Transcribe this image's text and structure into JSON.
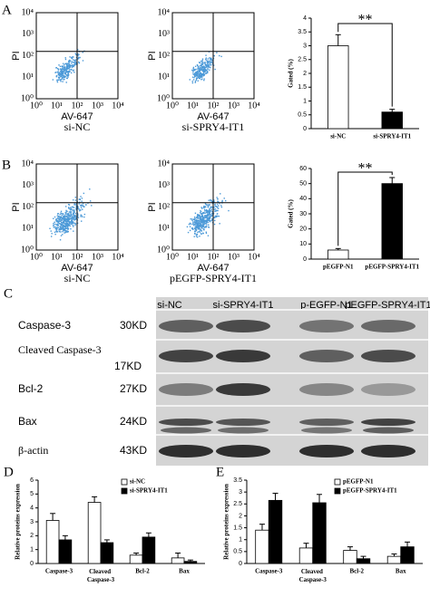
{
  "panel_labels": [
    "A",
    "B",
    "C",
    "D",
    "E"
  ],
  "flow": {
    "y_label": "PI",
    "x_label": "AV-647",
    "ticks": [
      "10⁰",
      "10¹",
      "10²",
      "10³",
      "10⁴"
    ],
    "plots": [
      {
        "label": "si-NC"
      },
      {
        "label": "si-SPRY4-IT1"
      },
      {
        "label": "si-NC"
      },
      {
        "label": "pEGFP-SPRY4-IT1"
      }
    ]
  },
  "blot": {
    "columns": [
      "si-NC",
      "si-SPRY4-IT1",
      "p-EGFP-N1",
      "pEGFP-SPRY4-IT1"
    ],
    "rows": [
      {
        "protein": "Caspase-3",
        "size": "30KD"
      },
      {
        "protein": "Cleaved Caspase-3",
        "size": "17KD"
      },
      {
        "protein": "Bcl-2",
        "size": "27KD"
      },
      {
        "protein": "Bax",
        "size": "24KD"
      },
      {
        "protein": "β-actin",
        "size": "43KD"
      }
    ]
  },
  "chart_data": [
    {
      "type": "bar",
      "ylabel": "Gated (%)",
      "categories": [
        "si-NC",
        "si-SPRY4-IT1"
      ],
      "values": [
        3.0,
        0.6
      ],
      "errors": [
        0.4,
        0.1
      ],
      "colors": [
        "#ffffff",
        "#000000"
      ],
      "ylim": [
        0,
        4
      ],
      "yticks": [
        0,
        0.5,
        1,
        1.5,
        2,
        2.5,
        3,
        3.5,
        4
      ],
      "annotation": "**"
    },
    {
      "type": "bar",
      "ylabel": "Gated (%)",
      "categories": [
        "pEGFP-N1",
        "pEGFP-SPRY4-IT1"
      ],
      "values": [
        6,
        50
      ],
      "errors": [
        1,
        4
      ],
      "colors": [
        "#ffffff",
        "#000000"
      ],
      "ylim": [
        0,
        60
      ],
      "yticks": [
        0,
        10,
        20,
        30,
        40,
        50,
        60
      ],
      "annotation": "**"
    },
    {
      "type": "bar",
      "ylabel": "Relative proteins expression",
      "categories": [
        "Caspase-3",
        "Cleaved Caspase-3",
        "Bcl-2",
        "Bax"
      ],
      "series": [
        {
          "name": "si-NC",
          "color": "#ffffff",
          "values": [
            3.1,
            4.4,
            0.6,
            0.4
          ],
          "errors": [
            0.5,
            0.4,
            0.15,
            0.35
          ]
        },
        {
          "name": "si-SPRY4-IT1",
          "color": "#000000",
          "values": [
            1.7,
            1.5,
            1.9,
            0.15
          ],
          "errors": [
            0.3,
            0.2,
            0.3,
            0.1
          ]
        }
      ],
      "ylim": [
        0,
        6
      ],
      "yticks": [
        0,
        1,
        2,
        3,
        4,
        5,
        6
      ]
    },
    {
      "type": "bar",
      "ylabel": "Relative proteins expression",
      "categories": [
        "Caspase-3",
        "Cleaved Caspase-3",
        "Bcl-2",
        "Bax"
      ],
      "series": [
        {
          "name": "pEGFP-N1",
          "color": "#ffffff",
          "values": [
            1.4,
            0.65,
            0.55,
            0.3
          ],
          "errors": [
            0.25,
            0.2,
            0.15,
            0.1
          ]
        },
        {
          "name": "pEGFP-SPRY4-IT1",
          "color": "#000000",
          "values": [
            2.65,
            2.55,
            0.2,
            0.7
          ],
          "errors": [
            0.3,
            0.35,
            0.1,
            0.2
          ]
        }
      ],
      "ylim": [
        0,
        3.5
      ],
      "yticks": [
        0,
        0.5,
        1,
        1.5,
        2,
        2.5,
        3,
        3.5
      ]
    }
  ]
}
